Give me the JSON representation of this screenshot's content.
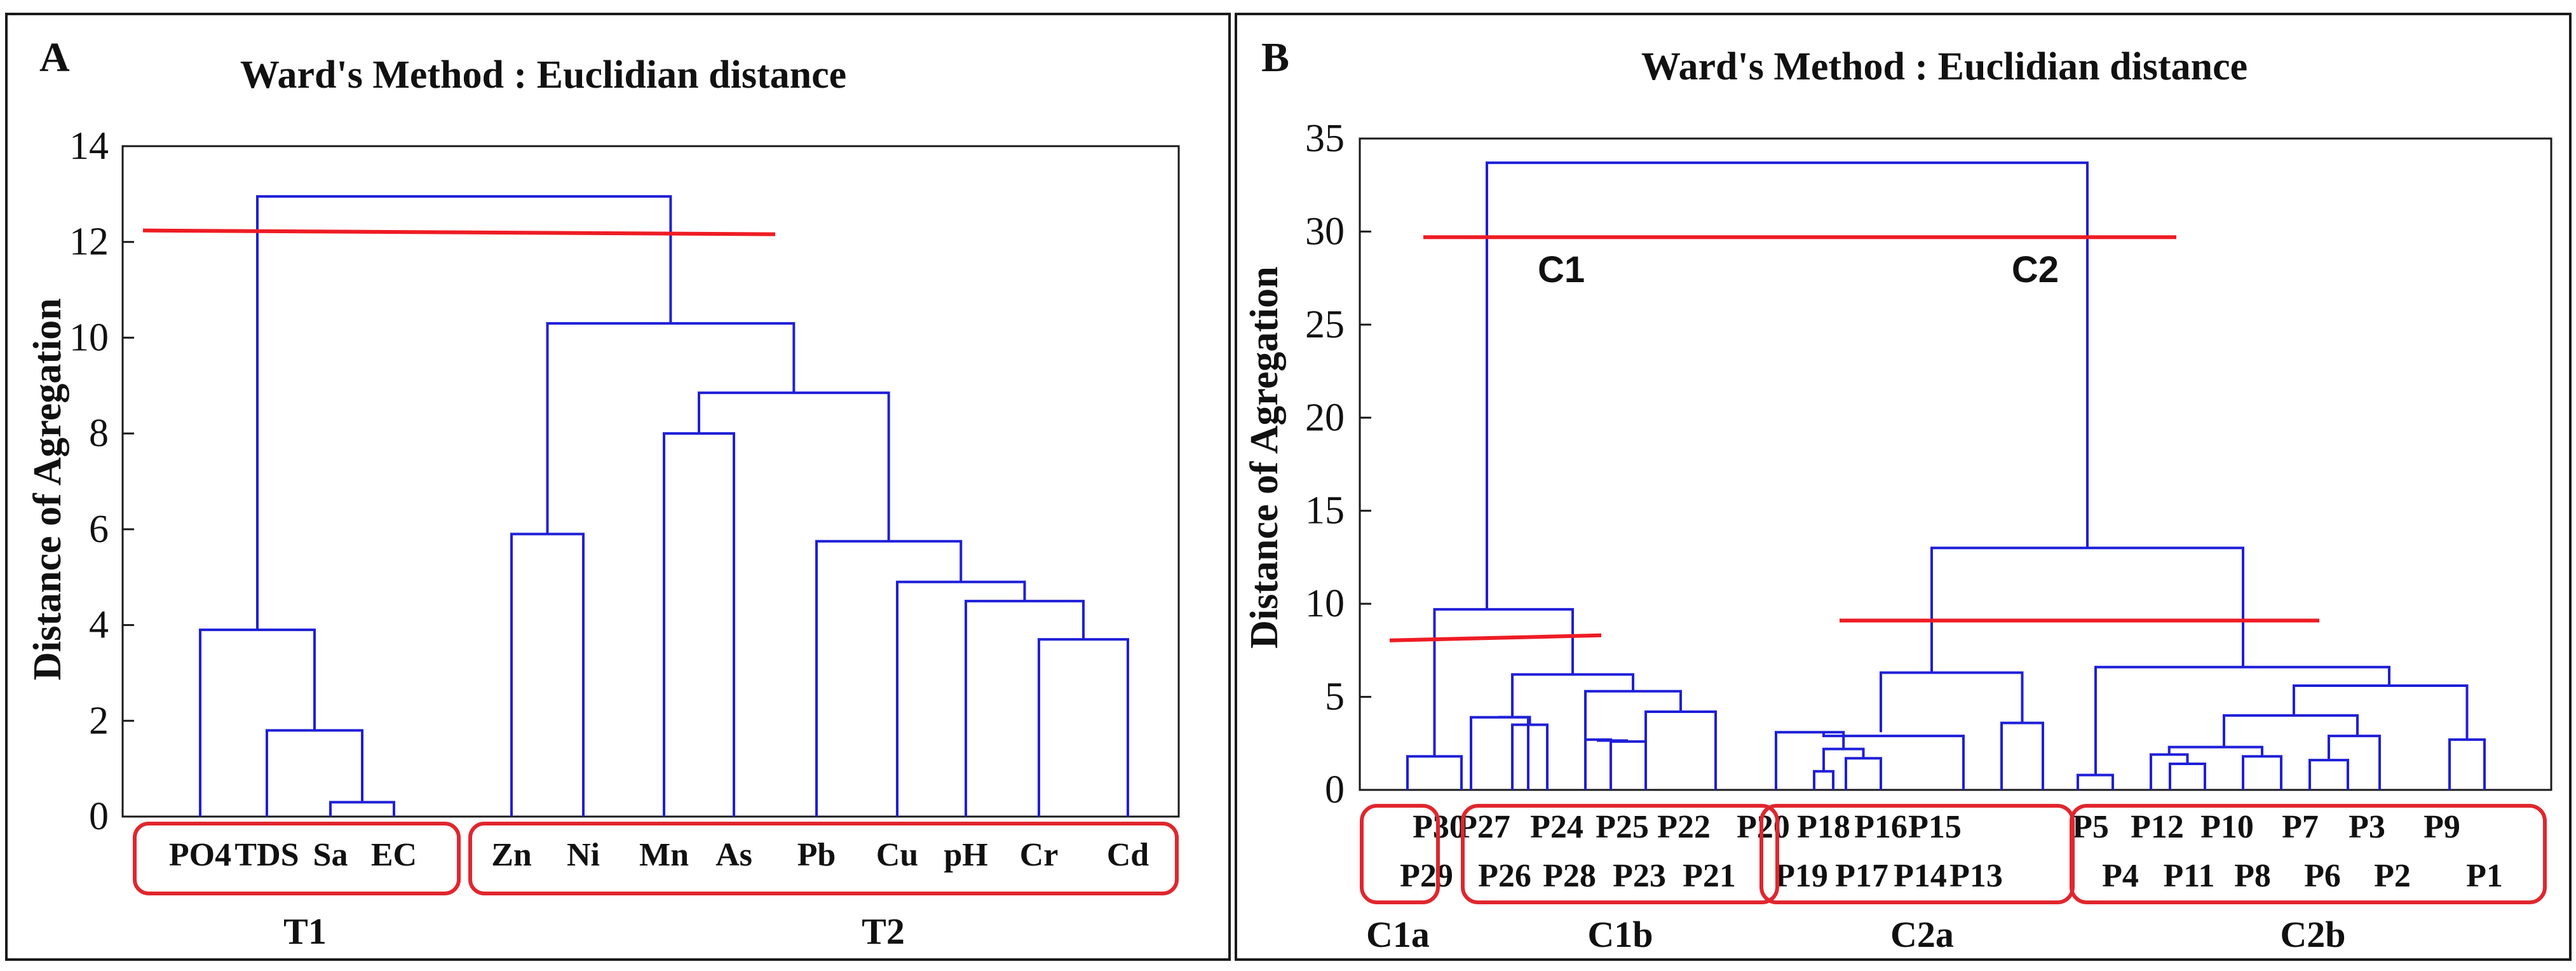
{
  "chart_data": [
    {
      "type": "dendrogram",
      "panel": "A",
      "title": "Ward's Method : Euclidian distance",
      "ylabel": "Distance of Agregation",
      "xlabel": "",
      "ylim": [
        0,
        14
      ],
      "yticks": [
        "0",
        "2",
        "4",
        "6",
        "8",
        "10",
        "12",
        "14"
      ],
      "leaves": [
        "PO4",
        "TDS",
        "Sa",
        "EC",
        "Zn",
        "Ni",
        "Mn",
        "As",
        "Pb",
        "Cu",
        "pH",
        "Cr",
        "Cd"
      ],
      "merges": [
        {
          "a": "Sa",
          "b": "EC",
          "height": 0.3
        },
        {
          "a": "TDS",
          "b": "m0",
          "height": 1.8
        },
        {
          "a": "PO4",
          "b": "m1",
          "height": 3.9
        },
        {
          "a": "Zn",
          "b": "Ni",
          "height": 5.9
        },
        {
          "a": "Mn",
          "b": "As",
          "height": 8.0
        },
        {
          "a": "Cr",
          "b": "Cd",
          "height": 3.7,
          "anchor": "pH"
        },
        {
          "a": "Cr",
          "b": "Cd",
          "height": 3.7
        },
        {
          "a": "pH",
          "b": "m6",
          "height": 4.5
        },
        {
          "a": "Cu",
          "b": "m7",
          "height": 4.9
        },
        {
          "a": "Pb",
          "b": "m8",
          "height": 5.75
        },
        {
          "a": "m4",
          "b": "m9",
          "height": 8.85
        },
        {
          "a": "m3",
          "b": "m10",
          "height": 10.3
        },
        {
          "a": "m2",
          "b": "m11",
          "height": 12.95
        }
      ],
      "cut_lines": [
        12.2
      ],
      "groups": [
        {
          "label": "T1",
          "from": "PO4",
          "to": "EC"
        },
        {
          "label": "T2",
          "from": "Zn",
          "to": "Cd"
        }
      ]
    },
    {
      "type": "dendrogram",
      "panel": "B",
      "title": "Ward's Method : Euclidian distance",
      "ylabel": "Distance of  Agregation",
      "xlabel": "",
      "ylim": [
        0,
        35
      ],
      "yticks": [
        "0",
        "5",
        "10",
        "15",
        "20",
        "25",
        "30",
        "35"
      ],
      "leaves": [
        "P30",
        "P29",
        "P27",
        "P26",
        "P24",
        "P28",
        "P25",
        "P23",
        "P22",
        "P21",
        "P20",
        "P19",
        "P18",
        "P17",
        "P16",
        "P14",
        "P15",
        "P13",
        "P5",
        "P4",
        "P12",
        "P11",
        "P10",
        "P8",
        "P7",
        "P6",
        "P3",
        "P2",
        "P9",
        "P1"
      ],
      "merges": [
        {
          "a": "P30",
          "b": "P29",
          "height": 1.8
        },
        {
          "a": "P27",
          "b": "P26",
          "height": 3.9
        },
        {
          "a": "m1",
          "b": "P24",
          "height": 3.5
        },
        {
          "a": "P28",
          "b": "P25",
          "height": 2.7
        },
        {
          "a": "m3",
          "b": "P23",
          "height": 2.6
        },
        {
          "a": "m4",
          "b": "P22",
          "height": 5.3
        },
        {
          "a": "P22",
          "b": "P21",
          "height": 4.2
        },
        {
          "a": "m2",
          "b": "m5",
          "height": 6.2
        },
        {
          "a": "m0",
          "b": "m7",
          "height": 9.7
        },
        {
          "a": "P19",
          "b": "P18",
          "height": 1.0
        },
        {
          "a": "P17",
          "b": "P16",
          "height": 1.7
        },
        {
          "a": "m9",
          "b": "m10",
          "height": 2.2
        },
        {
          "a": "P20",
          "b": "m11",
          "height": 3.1
        },
        {
          "a": "P14",
          "b": "m12",
          "height": 2.9
        },
        {
          "a": "P15",
          "b": "P13",
          "height": 3.6
        },
        {
          "a": "m13",
          "b": "m14",
          "height": 6.3
        },
        {
          "a": "P5",
          "b": "P4",
          "height": 0.8
        },
        {
          "a": "P11",
          "b": "P10",
          "height": 1.4
        },
        {
          "a": "P12",
          "b": "m16",
          "height": 1.9
        },
        {
          "a": "P8",
          "b": "P7",
          "height": 1.8
        },
        {
          "a": "m17",
          "b": "m18",
          "height": 2.3
        },
        {
          "a": "P6",
          "b": "P3",
          "height": 1.6
        },
        {
          "a": "m20",
          "b": "P2",
          "height": 2.9
        },
        {
          "a": "m19",
          "b": "m21",
          "height": 4.0
        },
        {
          "a": "P9",
          "b": "P1",
          "height": 2.7
        },
        {
          "a": "m22",
          "b": "m23",
          "height": 5.6
        },
        {
          "a": "m15",
          "b": "m24",
          "height": 6.6
        },
        {
          "a": "m14",
          "b": "m25",
          "height": 13.0
        },
        {
          "a": "m8",
          "b": "m26",
          "height": 33.7
        }
      ],
      "cut_lines": [
        29.7,
        8.1,
        9.1
      ],
      "cluster_labels": [
        "C1",
        "C2"
      ],
      "groups": [
        {
          "label": "C1a",
          "from": "P30",
          "to": "P29"
        },
        {
          "label": "C1b",
          "from": "P27",
          "to": "P21"
        },
        {
          "label": "C2a",
          "from": "P20",
          "to": "P13"
        },
        {
          "label": "C2b",
          "from": "P5",
          "to": "P1"
        }
      ]
    }
  ]
}
